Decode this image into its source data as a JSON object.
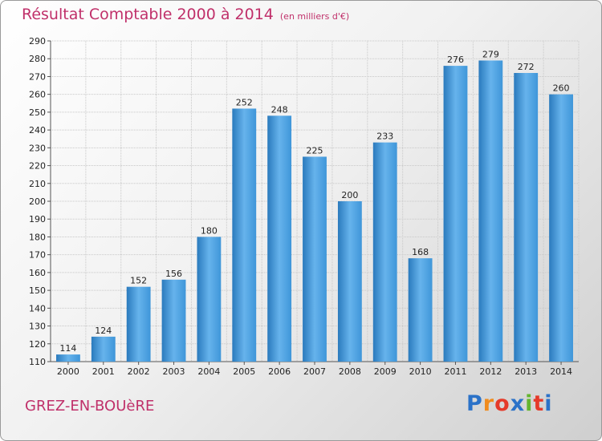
{
  "header": {
    "title": "Résultat Comptable 2000 à 2014",
    "subtitle": "(en milliers d'€)"
  },
  "footer": {
    "city": "GREZ-EN-BOUèRE",
    "logo": [
      "P",
      "r",
      "o",
      "x",
      "i",
      "t",
      "i"
    ],
    "logo_colors": [
      "#2b72c8",
      "#f08c1e",
      "#e53a2a",
      "#2b72c8",
      "#64b52e",
      "#e53a2a",
      "#2b72c8"
    ]
  },
  "chart_data": {
    "type": "bar",
    "categories": [
      "2000",
      "2001",
      "2002",
      "2003",
      "2004",
      "2005",
      "2006",
      "2007",
      "2008",
      "2009",
      "2010",
      "2011",
      "2012",
      "2013",
      "2014"
    ],
    "values": [
      114,
      124,
      152,
      156,
      180,
      252,
      248,
      225,
      200,
      233,
      168,
      276,
      279,
      272,
      260
    ],
    "data_labels": [
      "114",
      "124",
      "152",
      "156",
      "180",
      "252",
      "248",
      "225",
      "200",
      "233",
      "168",
      "276",
      "279",
      "272",
      "260"
    ],
    "title": "Résultat Comptable 2000 à 2014",
    "xlabel": "",
    "ylabel": "",
    "ylim": [
      110,
      290
    ],
    "yticks": [
      110,
      120,
      130,
      140,
      150,
      160,
      170,
      180,
      190,
      200,
      210,
      220,
      230,
      240,
      250,
      260,
      270,
      280,
      290
    ],
    "grid": true,
    "bar_color": "#3f96d9",
    "bar_color_light": "#66b3ec",
    "bar_color_dark": "#2a7abd"
  }
}
